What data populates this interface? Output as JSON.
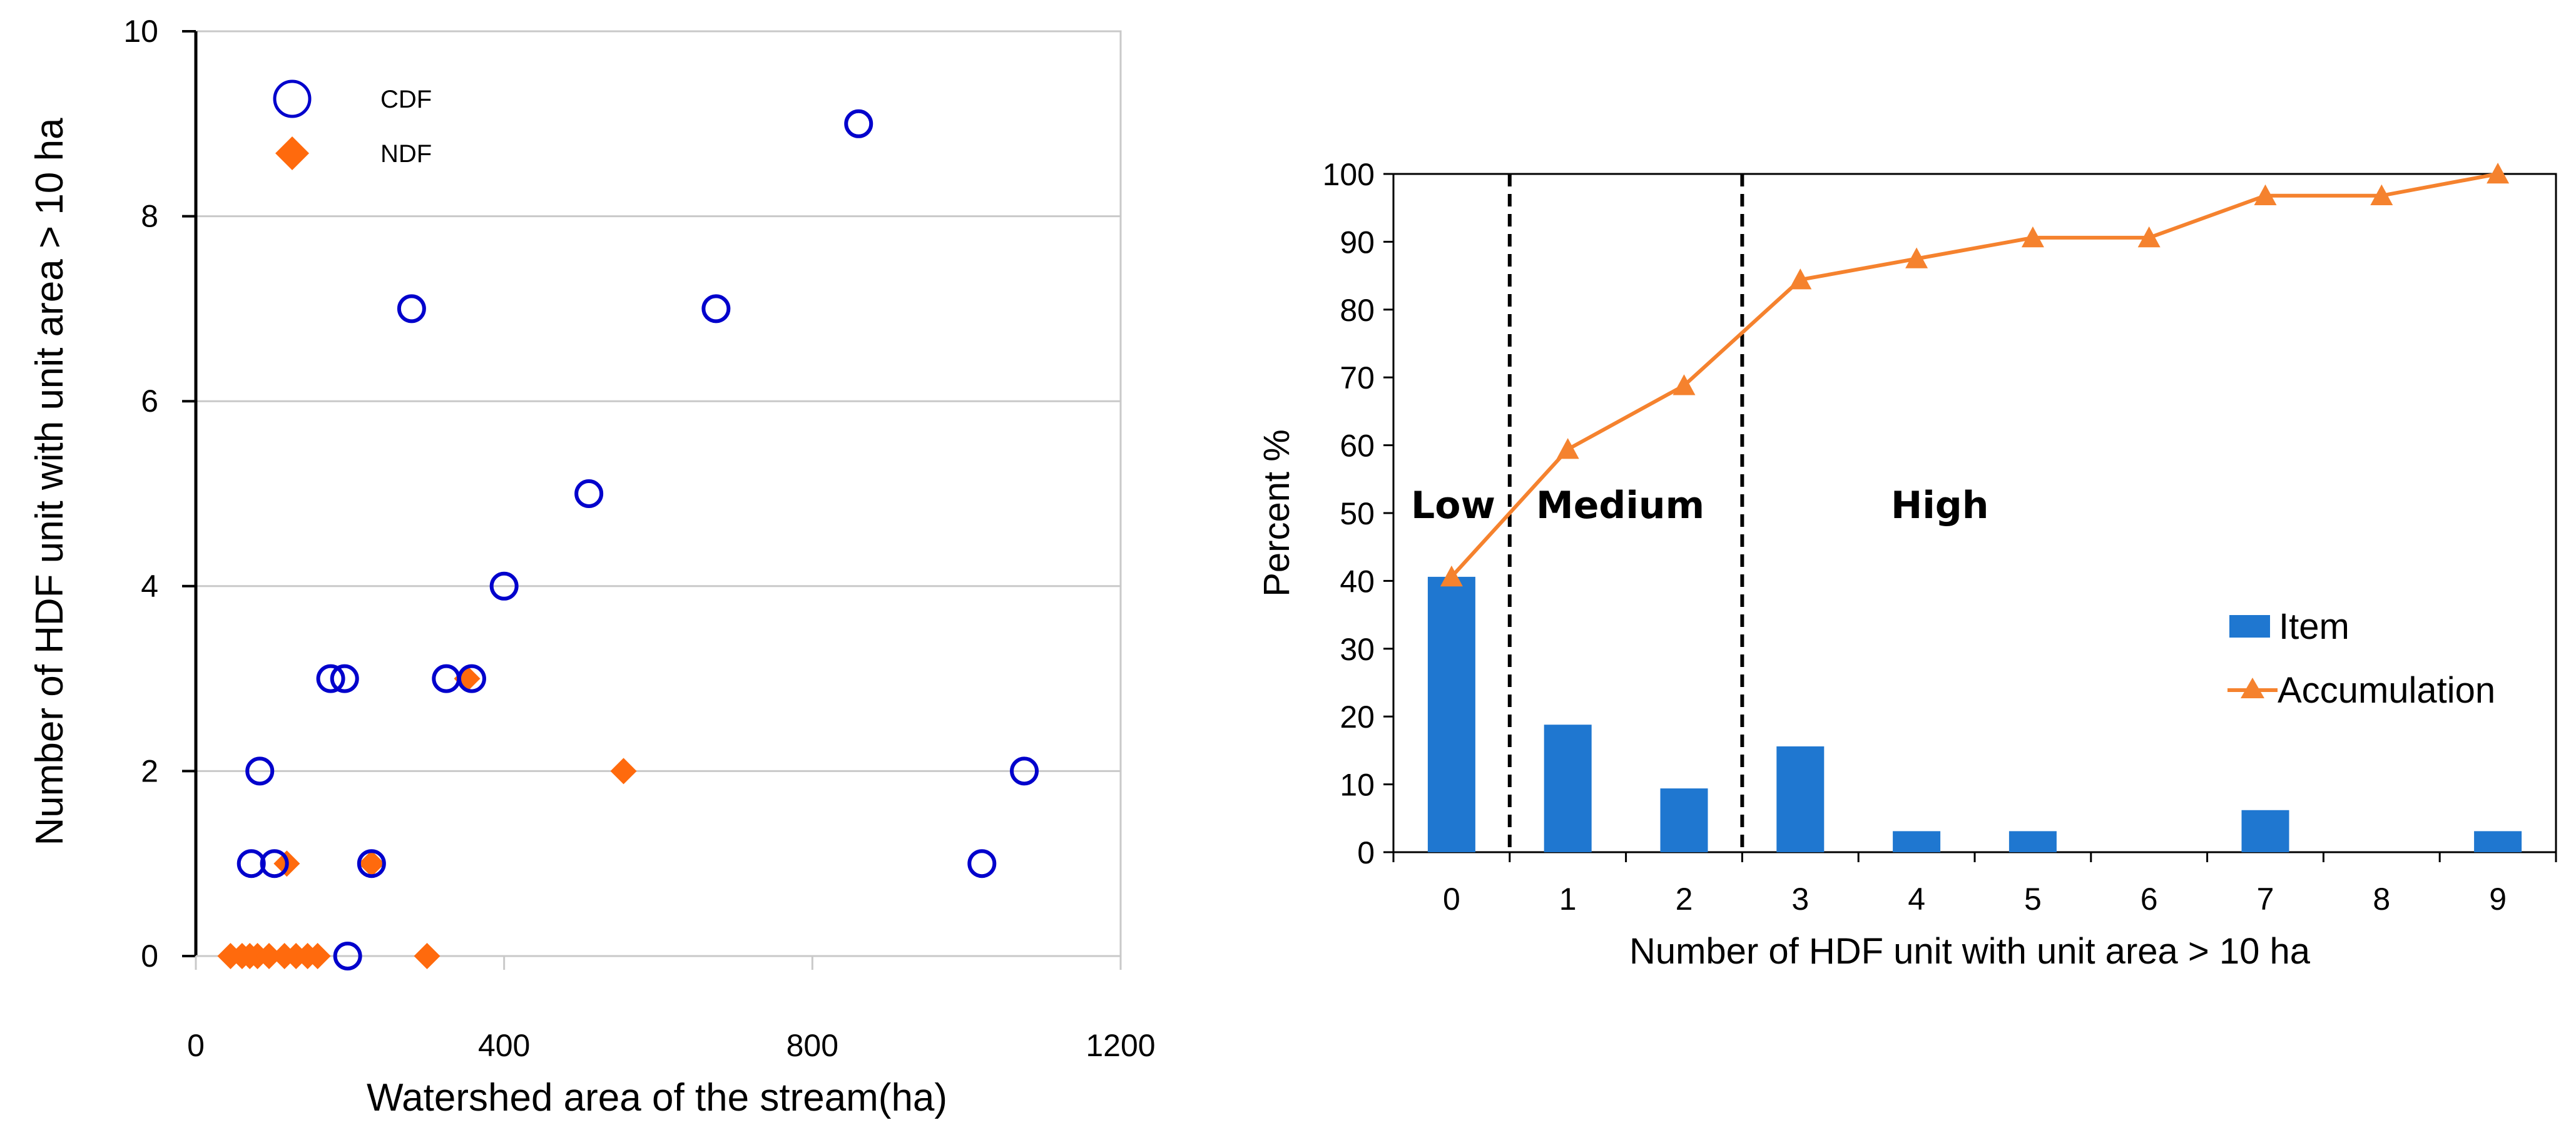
{
  "chart_data": [
    {
      "type": "scatter",
      "xlabel": "Watershed area of the stream(ha)",
      "ylabel": "Number of HDF unit with unit area  > 10 ha",
      "xlim": [
        0,
        1200
      ],
      "ylim": [
        0,
        10
      ],
      "xticks": [
        "0",
        "400",
        "800",
        "1200"
      ],
      "yticks": [
        "0",
        "2",
        "4",
        "6",
        "8",
        "10"
      ],
      "grid": "horizontal",
      "legend_position": "top-left",
      "series": [
        {
          "name": "CDF",
          "marker": "open-circle",
          "color": "#0000cc",
          "points": [
            [
              860,
              9
            ],
            [
              280,
              7
            ],
            [
              675,
              7
            ],
            [
              510,
              5
            ],
            [
              400,
              4
            ],
            [
              175,
              3
            ],
            [
              193,
              3
            ],
            [
              325,
              3
            ],
            [
              358,
              3
            ],
            [
              83,
              2
            ],
            [
              1075,
              2
            ],
            [
              72,
              1
            ],
            [
              102,
              1
            ],
            [
              228,
              1
            ],
            [
              1020,
              1
            ],
            [
              197,
              0
            ]
          ]
        },
        {
          "name": "NDF",
          "marker": "filled-diamond",
          "color": "#ff6a0d",
          "points": [
            [
              555,
              2
            ],
            [
              352,
              3
            ],
            [
              118,
              1
            ],
            [
              228,
              1
            ],
            [
              45,
              0
            ],
            [
              60,
              0
            ],
            [
              70,
              0
            ],
            [
              80,
              0
            ],
            [
              95,
              0
            ],
            [
              115,
              0
            ],
            [
              130,
              0
            ],
            [
              145,
              0
            ],
            [
              158,
              0
            ],
            [
              300,
              0
            ]
          ]
        }
      ]
    },
    {
      "type": "bar",
      "xlabel": "Number of HDF unit with unit area  > 10 ha",
      "ylabel": "Percent %",
      "ylim": [
        0,
        100
      ],
      "categories": [
        "0",
        "1",
        "2",
        "3",
        "4",
        "5",
        "6",
        "7",
        "8",
        "9"
      ],
      "yticks": [
        "0",
        "10",
        "20",
        "30",
        "40",
        "50",
        "60",
        "70",
        "80",
        "90",
        "100"
      ],
      "legend_position": "right",
      "series": [
        {
          "name": "Item",
          "type": "bar",
          "color": "#1f77d0",
          "values": [
            40.6,
            18.8,
            9.4,
            15.6,
            3.1,
            3.1,
            0,
            6.2,
            0,
            3.1
          ]
        },
        {
          "name": "Accumulation",
          "type": "line",
          "marker": "triangle",
          "color": "#f5822e",
          "values": [
            40.6,
            59.4,
            68.8,
            84.4,
            87.5,
            90.6,
            90.6,
            96.8,
            96.8,
            100
          ]
        }
      ],
      "dividers_after_category": [
        "0",
        "2"
      ],
      "regions": [
        "Low",
        "Medium",
        "High"
      ]
    }
  ]
}
